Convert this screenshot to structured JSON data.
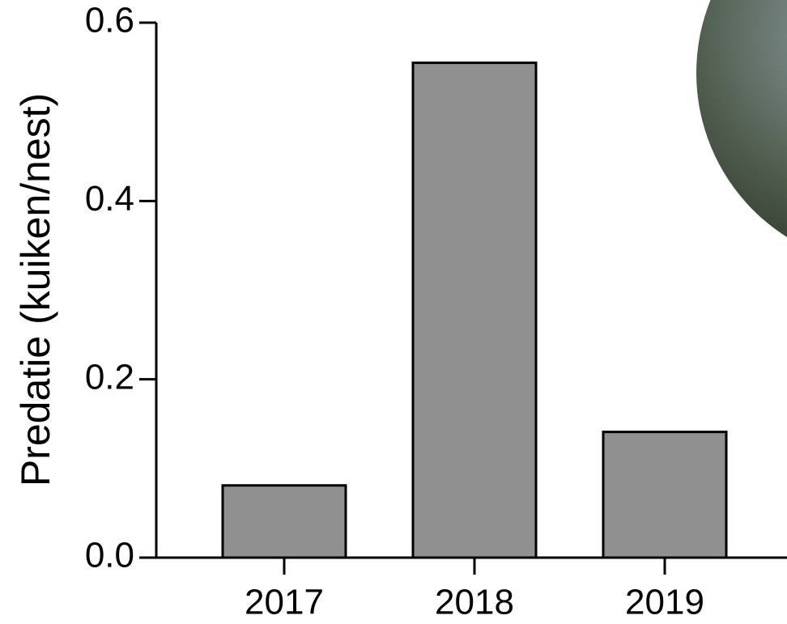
{
  "chart_data": {
    "type": "bar",
    "y_label": "Predatie (kuiken/nest)",
    "categories": [
      "2017",
      "2018",
      "2019"
    ],
    "values": [
      0.081,
      0.555,
      0.141
    ],
    "color": "#909090",
    "ylim": [
      0,
      0.6
    ],
    "yticks": [
      {
        "value": 0,
        "label": "0.0"
      },
      0.2,
      0.4,
      0.6
    ]
  }
}
